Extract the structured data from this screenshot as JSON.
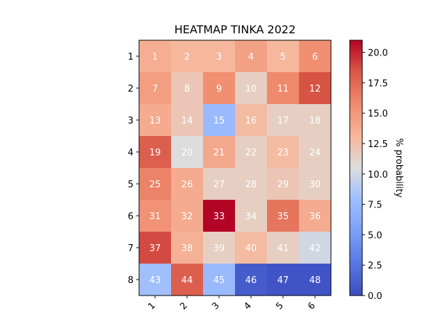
{
  "chart_data": {
    "type": "heatmap",
    "title": "HEATMAP TINKA 2022",
    "colormap": "coolwarm",
    "x_tick_labels": [
      "1",
      "2",
      "3",
      "4",
      "5",
      "6"
    ],
    "y_tick_labels": [
      "1",
      "2",
      "3",
      "4",
      "5",
      "6",
      "7",
      "8"
    ],
    "cell_labels": [
      [
        "1",
        "2",
        "3",
        "4",
        "5",
        "6"
      ],
      [
        "7",
        "8",
        "9",
        "10",
        "11",
        "12"
      ],
      [
        "13",
        "14",
        "15",
        "16",
        "17",
        "18"
      ],
      [
        "19",
        "20",
        "21",
        "22",
        "23",
        "24"
      ],
      [
        "25",
        "26",
        "27",
        "28",
        "29",
        "30"
      ],
      [
        "31",
        "32",
        "33",
        "34",
        "35",
        "36"
      ],
      [
        "37",
        "38",
        "39",
        "40",
        "41",
        "42"
      ],
      [
        "43",
        "44",
        "45",
        "46",
        "47",
        "48"
      ]
    ],
    "values": [
      [
        13.6,
        13.0,
        13.0,
        14.4,
        13.0,
        15.5
      ],
      [
        14.6,
        12.0,
        15.5,
        11.5,
        15.8,
        18.5
      ],
      [
        13.8,
        12.0,
        7.5,
        12.8,
        11.5,
        11.5
      ],
      [
        18.0,
        10.5,
        14.0,
        11.5,
        12.8,
        11.5
      ],
      [
        16.2,
        13.8,
        11.5,
        11.5,
        12.0,
        11.5
      ],
      [
        15.3,
        13.8,
        21.0,
        11.5,
        16.9,
        13.8
      ],
      [
        18.8,
        13.4,
        11.5,
        12.8,
        11.5,
        10.0
      ],
      [
        8.0,
        18.0,
        7.5,
        1.0,
        0.5,
        0.5
      ]
    ],
    "colorbar": {
      "label": "% probability",
      "range": [
        0.0,
        21.0
      ],
      "ticks": [
        "0.0",
        "2.5",
        "5.0",
        "7.5",
        "10.0",
        "12.5",
        "15.0",
        "17.5",
        "20.0"
      ]
    }
  }
}
